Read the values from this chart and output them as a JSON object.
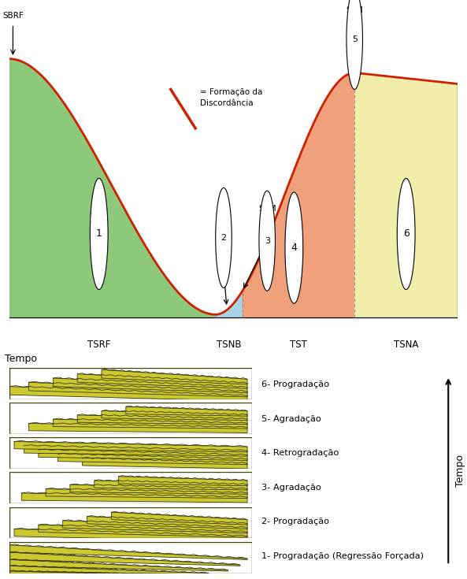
{
  "bg_color": "#ffffff",
  "curve_color": "#cc2200",
  "fill_green": "#8ec87a",
  "fill_blue": "#a8d4e8",
  "fill_orange": "#f0a07a",
  "fill_yellow": "#f0eeaa",
  "panel_bg_dark": "#6b7a1e",
  "panel_bg_light": "#ccc830",
  "panel_line_color": "#2a2a00",
  "panel_labels_ordered_top_to_bottom": [
    "6- Progradação",
    "5- Agradação",
    "4- Retrogradação",
    "3- Agradação",
    "2- Progradação",
    "1- Progradação (Regressão Forçada)"
  ]
}
